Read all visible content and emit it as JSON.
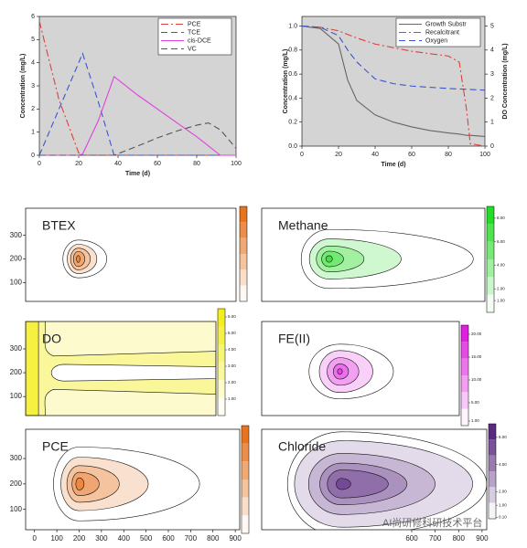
{
  "chart_data": [
    {
      "type": "line",
      "xlabel": "Time (d)",
      "ylabel": "Concentration (mg/L)",
      "x": [
        0,
        10,
        20,
        22,
        30,
        38,
        50,
        60,
        70,
        80,
        86,
        92,
        100
      ],
      "xlim": [
        0,
        100
      ],
      "xticks": [
        0,
        20,
        40,
        60,
        80,
        100
      ],
      "ylim": [
        0,
        6
      ],
      "yticks": [
        0,
        1,
        2,
        3,
        4,
        5,
        6
      ],
      "background": "#d4d4d4",
      "series": [
        {
          "name": "PCE",
          "color": "#e0403a",
          "dash": "dashdot",
          "values": [
            5.8,
            2.4,
            0.1,
            0,
            0,
            0,
            0,
            0,
            0,
            0,
            0,
            0,
            0
          ]
        },
        {
          "name": "TCE",
          "color": "#3a55d0",
          "dash": "dashed",
          "values": [
            0,
            2.0,
            4.0,
            4.4,
            2.3,
            0,
            0,
            0,
            0,
            0,
            0,
            0,
            0
          ]
        },
        {
          "name": "cis-DCE",
          "color": "#e040e0",
          "dash": "solid",
          "values": [
            0,
            0,
            0,
            0.05,
            1.5,
            3.4,
            2.6,
            2.0,
            1.4,
            0.8,
            0.4,
            0,
            0
          ]
        },
        {
          "name": "VC",
          "color": "#555555",
          "dash": "dashed",
          "values": [
            0,
            0,
            0,
            0,
            0,
            0,
            0.4,
            0.75,
            1.05,
            1.3,
            1.4,
            1.1,
            0.3
          ]
        }
      ]
    },
    {
      "type": "line",
      "xlabel": "Time (d)",
      "ylabel": "Concentration (mg/L)",
      "y2label": "DO Concentration (mg/L)",
      "x": [
        0,
        10,
        20,
        25,
        30,
        40,
        50,
        60,
        70,
        80,
        86,
        90,
        92,
        100
      ],
      "xlim": [
        0,
        100
      ],
      "xticks": [
        0,
        20,
        40,
        60,
        80,
        100
      ],
      "ylim": [
        0,
        1.08
      ],
      "yticks": [
        {
          "value": 0,
          "label": "0.0"
        },
        0.2,
        0.4,
        0.6,
        0.8,
        {
          "value": 1,
          "label": "1.0"
        }
      ],
      "y2lim": [
        0,
        5.4
      ],
      "y2ticks": [
        0,
        1,
        2,
        3,
        4,
        5
      ],
      "background": "#d4d4d4",
      "series": [
        {
          "name": "Growth Substr",
          "color": "#666666",
          "dash": "solid",
          "values": [
            1.0,
            0.98,
            0.85,
            0.55,
            0.38,
            0.26,
            0.2,
            0.16,
            0.13,
            0.11,
            0.1,
            0.09,
            0.09,
            0.08
          ]
        },
        {
          "name": "Recalcitrant",
          "color": "#e0403a",
          "dash": "dashdot",
          "values": [
            1.0,
            0.99,
            0.96,
            0.93,
            0.9,
            0.85,
            0.82,
            0.79,
            0.77,
            0.75,
            0.7,
            0.3,
            0.02,
            0
          ]
        },
        {
          "name": "Oxygen",
          "color": "#3a55d0",
          "dash": "dashed",
          "axis": "y2",
          "values": [
            5,
            4.95,
            4.6,
            4.0,
            3.5,
            2.8,
            2.6,
            2.5,
            2.45,
            2.4,
            2.38,
            2.37,
            2.36,
            2.33
          ]
        }
      ]
    },
    {
      "type": "contour",
      "title": "BTEX",
      "color": "#e8741e",
      "xlim": [
        -40,
        920
      ],
      "ylim": [
        20,
        415
      ],
      "yticks": [
        100,
        200,
        300
      ]
    },
    {
      "type": "contour",
      "title": "Methane",
      "color": "#22dd22",
      "xlim": [
        -40,
        920
      ],
      "ylim": [
        20,
        415
      ],
      "cbar_lim": [
        0,
        9
      ],
      "cbar_ticks": [
        {
          "value": 1,
          "label": "1.00"
        },
        {
          "value": 2,
          "label": "2.00"
        },
        {
          "value": 4,
          "label": "4.00"
        },
        {
          "value": 6,
          "label": "6.00"
        },
        {
          "value": 8,
          "label": "8.00"
        }
      ]
    },
    {
      "type": "contour-band",
      "title": "DO",
      "color": "#f4ee20",
      "xlim": [
        -40,
        920
      ],
      "ylim": [
        20,
        415
      ],
      "yticks": [
        100,
        200,
        300
      ],
      "cbar_lim": [
        0,
        6.5
      ],
      "cbar_ticks": [
        {
          "value": 1,
          "label": "1.00"
        },
        {
          "value": 2,
          "label": "2.00"
        },
        {
          "value": 3,
          "label": "3.00"
        },
        {
          "value": 4,
          "label": "4.00"
        },
        {
          "value": 5,
          "label": "5.00"
        },
        {
          "value": 6,
          "label": "6.00"
        }
      ]
    },
    {
      "type": "contour",
      "title": "FE(II)",
      "color": "#e020e0",
      "xlim": [
        -40,
        920
      ],
      "ylim": [
        20,
        415
      ],
      "cbar_lim": [
        0,
        22
      ],
      "cbar_ticks": [
        {
          "value": 1,
          "label": "1.00"
        },
        {
          "value": 5,
          "label": "5.00"
        },
        {
          "value": 10,
          "label": "10.00"
        },
        {
          "value": 15,
          "label": "15.00"
        },
        {
          "value": 20,
          "label": "20.00"
        }
      ]
    },
    {
      "type": "contour",
      "title": "PCE",
      "color": "#e8741e",
      "xlim": [
        -40,
        920
      ],
      "ylim": [
        20,
        415
      ],
      "yticks": [
        100,
        200,
        300
      ],
      "xticks": [
        0,
        100,
        200,
        300,
        400,
        500,
        600,
        700,
        800,
        900
      ]
    },
    {
      "type": "contour",
      "title": "Chloride",
      "color": "#5a2a80",
      "xlim": [
        -40,
        920
      ],
      "ylim": [
        20,
        415
      ],
      "xticks": [
        600,
        700,
        800,
        900
      ],
      "cbar_lim": [
        0,
        7
      ],
      "cbar_ticks": [
        {
          "value": 0.1,
          "label": "0.10"
        },
        {
          "value": 1,
          "label": "1.00"
        },
        {
          "value": 2,
          "label": "2.00"
        },
        {
          "value": 4,
          "label": "4.00"
        },
        {
          "value": 6,
          "label": "6.00"
        }
      ]
    }
  ],
  "watermark": "AI尚研修科研技术平台"
}
